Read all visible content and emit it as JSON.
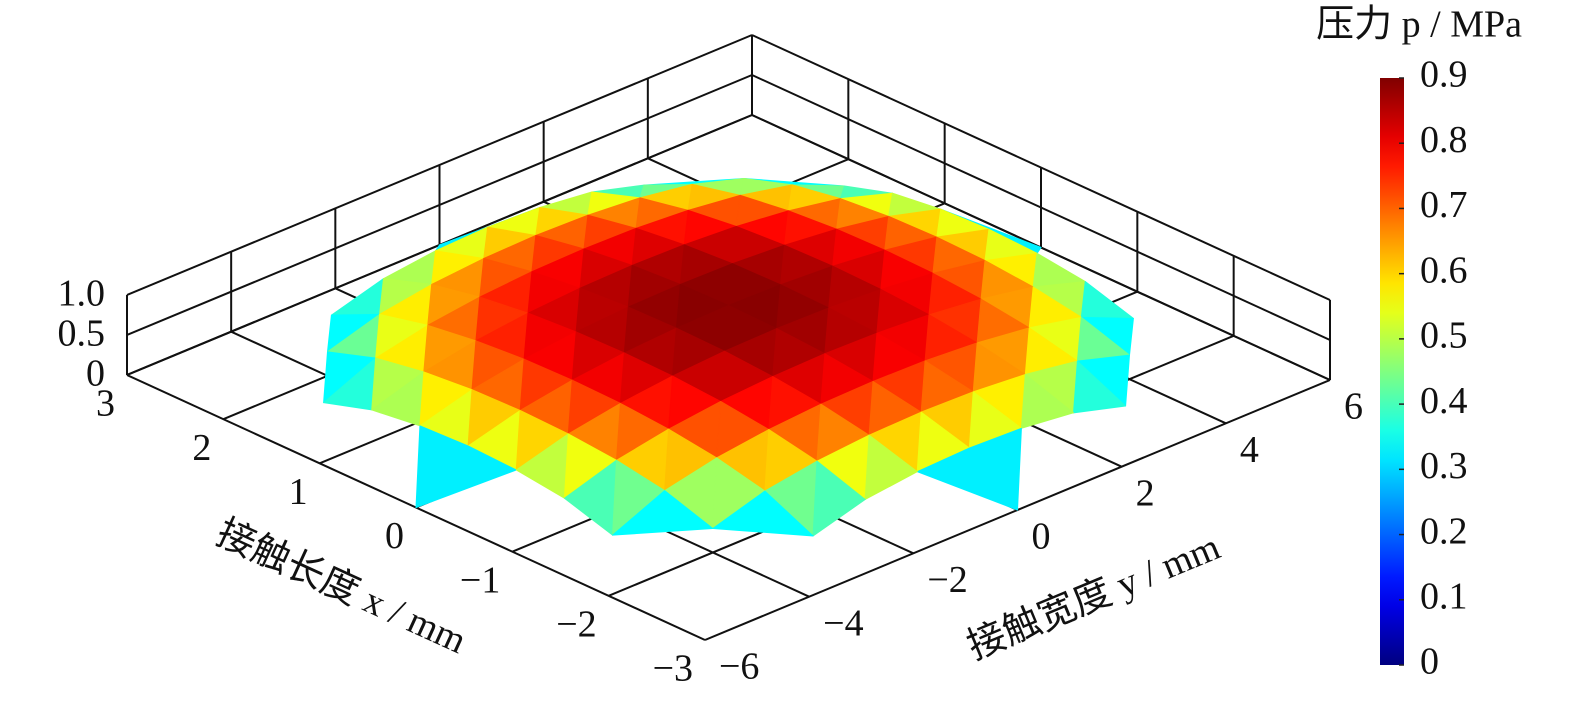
{
  "chart_data": {
    "type": "surface3d",
    "xlabel": "接触长度 x / mm",
    "ylabel": "接触宽度 y / mm",
    "colorbar_title": "压力 p / MPa",
    "colormap": "jet",
    "x": [
      -3,
      -2.5,
      -2,
      -1.5,
      -1,
      -0.5,
      0,
      0.5,
      1,
      1.5,
      2,
      2.5,
      3
    ],
    "y": [
      -6,
      -5,
      -4,
      -3,
      -2,
      -1,
      0,
      1,
      2,
      3,
      4,
      5,
      6
    ],
    "z": [
      [
        null,
        null,
        null,
        null,
        null,
        null,
        0,
        null,
        null,
        null,
        null,
        null,
        null
      ],
      [
        null,
        null,
        null,
        0.212,
        0.397,
        0.474,
        0.498,
        0.474,
        0.397,
        0.212,
        null,
        null,
        null
      ],
      [
        null,
        null,
        0.3,
        0.497,
        0.6,
        0.654,
        0.671,
        0.654,
        0.6,
        0.497,
        0.3,
        null,
        null
      ],
      [
        null,
        0.212,
        0.497,
        0.636,
        0.719,
        0.765,
        0.779,
        0.765,
        0.719,
        0.636,
        0.497,
        0.212,
        null
      ],
      [
        null,
        0.397,
        0.6,
        0.719,
        0.794,
        0.835,
        0.849,
        0.835,
        0.794,
        0.719,
        0.6,
        0.397,
        null
      ],
      [
        null,
        0.474,
        0.654,
        0.765,
        0.835,
        0.875,
        0.887,
        0.875,
        0.835,
        0.765,
        0.654,
        0.474,
        null
      ],
      [
        0,
        0.498,
        0.671,
        0.779,
        0.849,
        0.887,
        0.9,
        0.887,
        0.849,
        0.779,
        0.671,
        0.498,
        0
      ],
      [
        null,
        0.474,
        0.654,
        0.765,
        0.835,
        0.875,
        0.887,
        0.875,
        0.835,
        0.765,
        0.654,
        0.474,
        null
      ],
      [
        null,
        0.397,
        0.6,
        0.719,
        0.794,
        0.835,
        0.849,
        0.835,
        0.794,
        0.719,
        0.6,
        0.397,
        null
      ],
      [
        null,
        0.212,
        0.497,
        0.636,
        0.719,
        0.765,
        0.779,
        0.765,
        0.719,
        0.636,
        0.497,
        0.212,
        null
      ],
      [
        null,
        null,
        0.3,
        0.497,
        0.6,
        0.654,
        0.671,
        0.654,
        0.6,
        0.497,
        0.3,
        null,
        null
      ],
      [
        null,
        null,
        null,
        0.212,
        0.397,
        0.474,
        0.498,
        0.474,
        0.397,
        0.212,
        null,
        null,
        null
      ],
      [
        null,
        null,
        null,
        null,
        null,
        null,
        0,
        null,
        null,
        null,
        null,
        null,
        null
      ]
    ],
    "xlim": [
      -3,
      3
    ],
    "xticks": [
      {
        "value": -3,
        "label": "−3"
      },
      {
        "value": -2,
        "label": "−2"
      },
      {
        "value": -1,
        "label": "−1"
      },
      0,
      1,
      2,
      3
    ],
    "ylim": [
      -6,
      6
    ],
    "yticks": [
      {
        "value": -6,
        "label": "−6"
      },
      {
        "value": -4,
        "label": "−4"
      },
      {
        "value": -2,
        "label": "−2"
      },
      0,
      2,
      4,
      6
    ],
    "zlim": [
      0,
      1
    ],
    "zticks": [
      0,
      0.5,
      {
        "value": 1,
        "label": "1.0"
      }
    ],
    "clim": [
      0,
      0.9
    ],
    "cticks": [
      0,
      0.1,
      0.2,
      0.3,
      0.4,
      0.5,
      0.6,
      0.7,
      0.8,
      0.9
    ],
    "grid": true
  }
}
